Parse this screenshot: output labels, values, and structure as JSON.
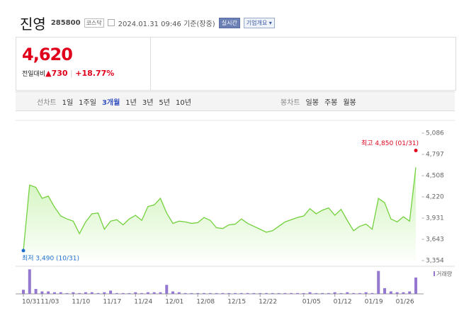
{
  "header": {
    "name": "진영",
    "code": "285800",
    "market": "코스닥",
    "timestamp": "2024.01.31 09:46 기준(장중)",
    "realtime": "실시간",
    "overview": "기업개요"
  },
  "price": {
    "current": "4,620",
    "change_label": "전일대비",
    "change": "▲730",
    "rate": "+18.77%"
  },
  "tabs": {
    "line_label": "선차트",
    "line_periods": [
      "1일",
      "1주일",
      "3개월",
      "1년",
      "3년",
      "5년",
      "10년"
    ],
    "candle_label": "봉차트",
    "candle_periods": [
      "일봉",
      "주봉",
      "월봉"
    ],
    "selected": 2
  },
  "chart_data": {
    "type": "line",
    "color": "#72d13c",
    "fill_color": "#c9f2b0",
    "categories": [
      "10/31",
      null,
      null,
      "11/03",
      null,
      null,
      null,
      null,
      "11/10",
      null,
      null,
      null,
      null,
      "11/17",
      null,
      null,
      null,
      null,
      "11/24",
      null,
      null,
      null,
      null,
      "12/01",
      null,
      null,
      null,
      null,
      "12/08",
      null,
      null,
      null,
      null,
      "12/15",
      null,
      null,
      null,
      null,
      "12/22",
      null,
      null,
      null,
      null,
      null,
      null,
      "01/05",
      null,
      null,
      null,
      null,
      "01/12",
      null,
      null,
      null,
      null,
      "01/19",
      null,
      null,
      null,
      null,
      "01/26",
      null,
      null,
      null
    ],
    "values": [
      3490,
      4380,
      4350,
      4200,
      4230,
      4080,
      3960,
      3920,
      3890,
      3720,
      3880,
      3990,
      4000,
      3780,
      3890,
      3910,
      3840,
      3920,
      3970,
      3900,
      4090,
      4110,
      4200,
      4000,
      3860,
      3890,
      3880,
      3860,
      3870,
      3940,
      3900,
      3800,
      3790,
      3840,
      3850,
      3920,
      3860,
      3820,
      3780,
      3740,
      3760,
      3820,
      3880,
      3910,
      3940,
      3960,
      4060,
      3990,
      4040,
      4070,
      3970,
      4050,
      3900,
      3760,
      3820,
      3850,
      3780,
      4200,
      4140,
      3920,
      3880,
      3950,
      3890,
      4620
    ],
    "ylim": [
      3354,
      5086
    ],
    "yticks": [
      {
        "value": 5086,
        "label": "5,086"
      },
      {
        "value": 4797,
        "label": "4,797"
      },
      {
        "value": 4508,
        "label": "4,508"
      },
      {
        "value": 4220,
        "label": "4,220"
      },
      {
        "value": 3931,
        "label": "3,931"
      },
      {
        "value": 3643,
        "label": "3,643"
      },
      {
        "value": 3354,
        "label": "3,354"
      }
    ],
    "high": {
      "text": "최고 4,850 (01/31)",
      "value": 4850,
      "color": "#e0001b"
    },
    "low": {
      "text": "최저 3,490 (10/31)",
      "value": 3490,
      "color": "#1f6fd1"
    },
    "volume": {
      "name": "거래량",
      "color": "#9478d0",
      "axis": "y2",
      "values": [
        5,
        30,
        6,
        3,
        3,
        2,
        2,
        1,
        2,
        1,
        2,
        2,
        1,
        2,
        4,
        1,
        1,
        1,
        2,
        1,
        2,
        2,
        2,
        11,
        3,
        2,
        1,
        1,
        1,
        1,
        1,
        1,
        1,
        1,
        1,
        1,
        1,
        1,
        1,
        1,
        1,
        1,
        1,
        1,
        1,
        1,
        2,
        1,
        1,
        1,
        2,
        1,
        2,
        1,
        1,
        2,
        1,
        28,
        7,
        3,
        2,
        2,
        3,
        20
      ]
    },
    "y2lim": [
      0,
      32
    ]
  }
}
